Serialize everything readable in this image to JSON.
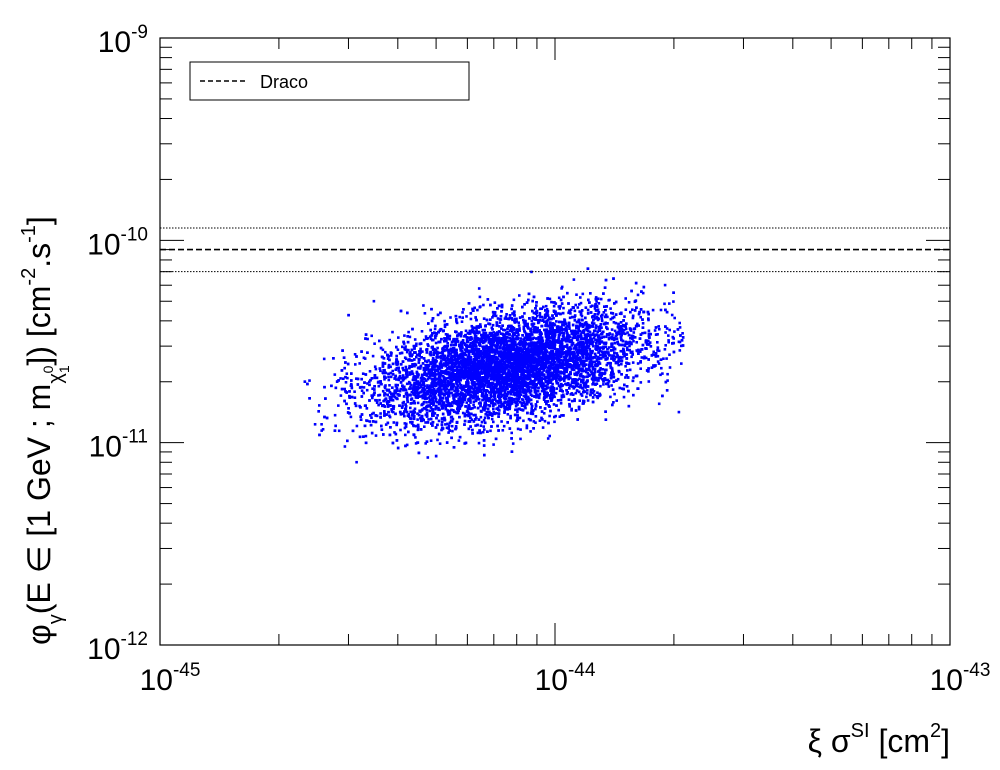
{
  "chart_data": {
    "type": "scatter",
    "x_scale": "log",
    "y_scale": "log",
    "xlim": [
      1e-45,
      1e-43
    ],
    "ylim": [
      1e-12,
      1e-09
    ],
    "x_ticks": [
      {
        "value": 1e-45,
        "base": "10",
        "exp": "-45"
      },
      {
        "value": 1e-44,
        "base": "10",
        "exp": "-44"
      },
      {
        "value": 1e-43,
        "base": "10",
        "exp": "-43"
      }
    ],
    "y_ticks": [
      {
        "value": 1e-12,
        "base": "10",
        "exp": "-12"
      },
      {
        "value": 1e-11,
        "base": "10",
        "exp": "-11"
      },
      {
        "value": 1e-10,
        "base": "10",
        "exp": "-10"
      },
      {
        "value": 1e-09,
        "base": "10",
        "exp": "-9"
      }
    ],
    "xlabel": {
      "pre": "ξ σ",
      "sup": "SI",
      "mid": " [cm",
      "sup2": "2",
      "post": "]"
    },
    "ylabel": {
      "phi": "φ",
      "phi_sub": "γ",
      "body": "(E ∈ [1 GeV ; m",
      "m_sub": "χ",
      "chi_sub": "1",
      "chi_sup": "0",
      "close": "]) [cm",
      "unit_sup1": "-2",
      "unit_mid": ".s",
      "unit_sup2": "-1",
      "unit_close": "]"
    },
    "legend": {
      "position": "top-left",
      "label": "Draco",
      "style": "dashed"
    },
    "lines": [
      {
        "name": "Draco",
        "y": 9e-11,
        "style": "dashed"
      },
      {
        "y": 1.15e-10,
        "style": "dotted"
      },
      {
        "y": 7e-11,
        "style": "dotted"
      }
    ],
    "scatter_color": "#0000ff",
    "scatter_summary": {
      "points": 9000,
      "x_center": 7.5e-45,
      "y_center": 2.4e-11,
      "x_range": [
        2.3e-45,
        2.1e-44
      ],
      "y_range": [
        7.5e-12,
        8.5e-11
      ]
    }
  }
}
